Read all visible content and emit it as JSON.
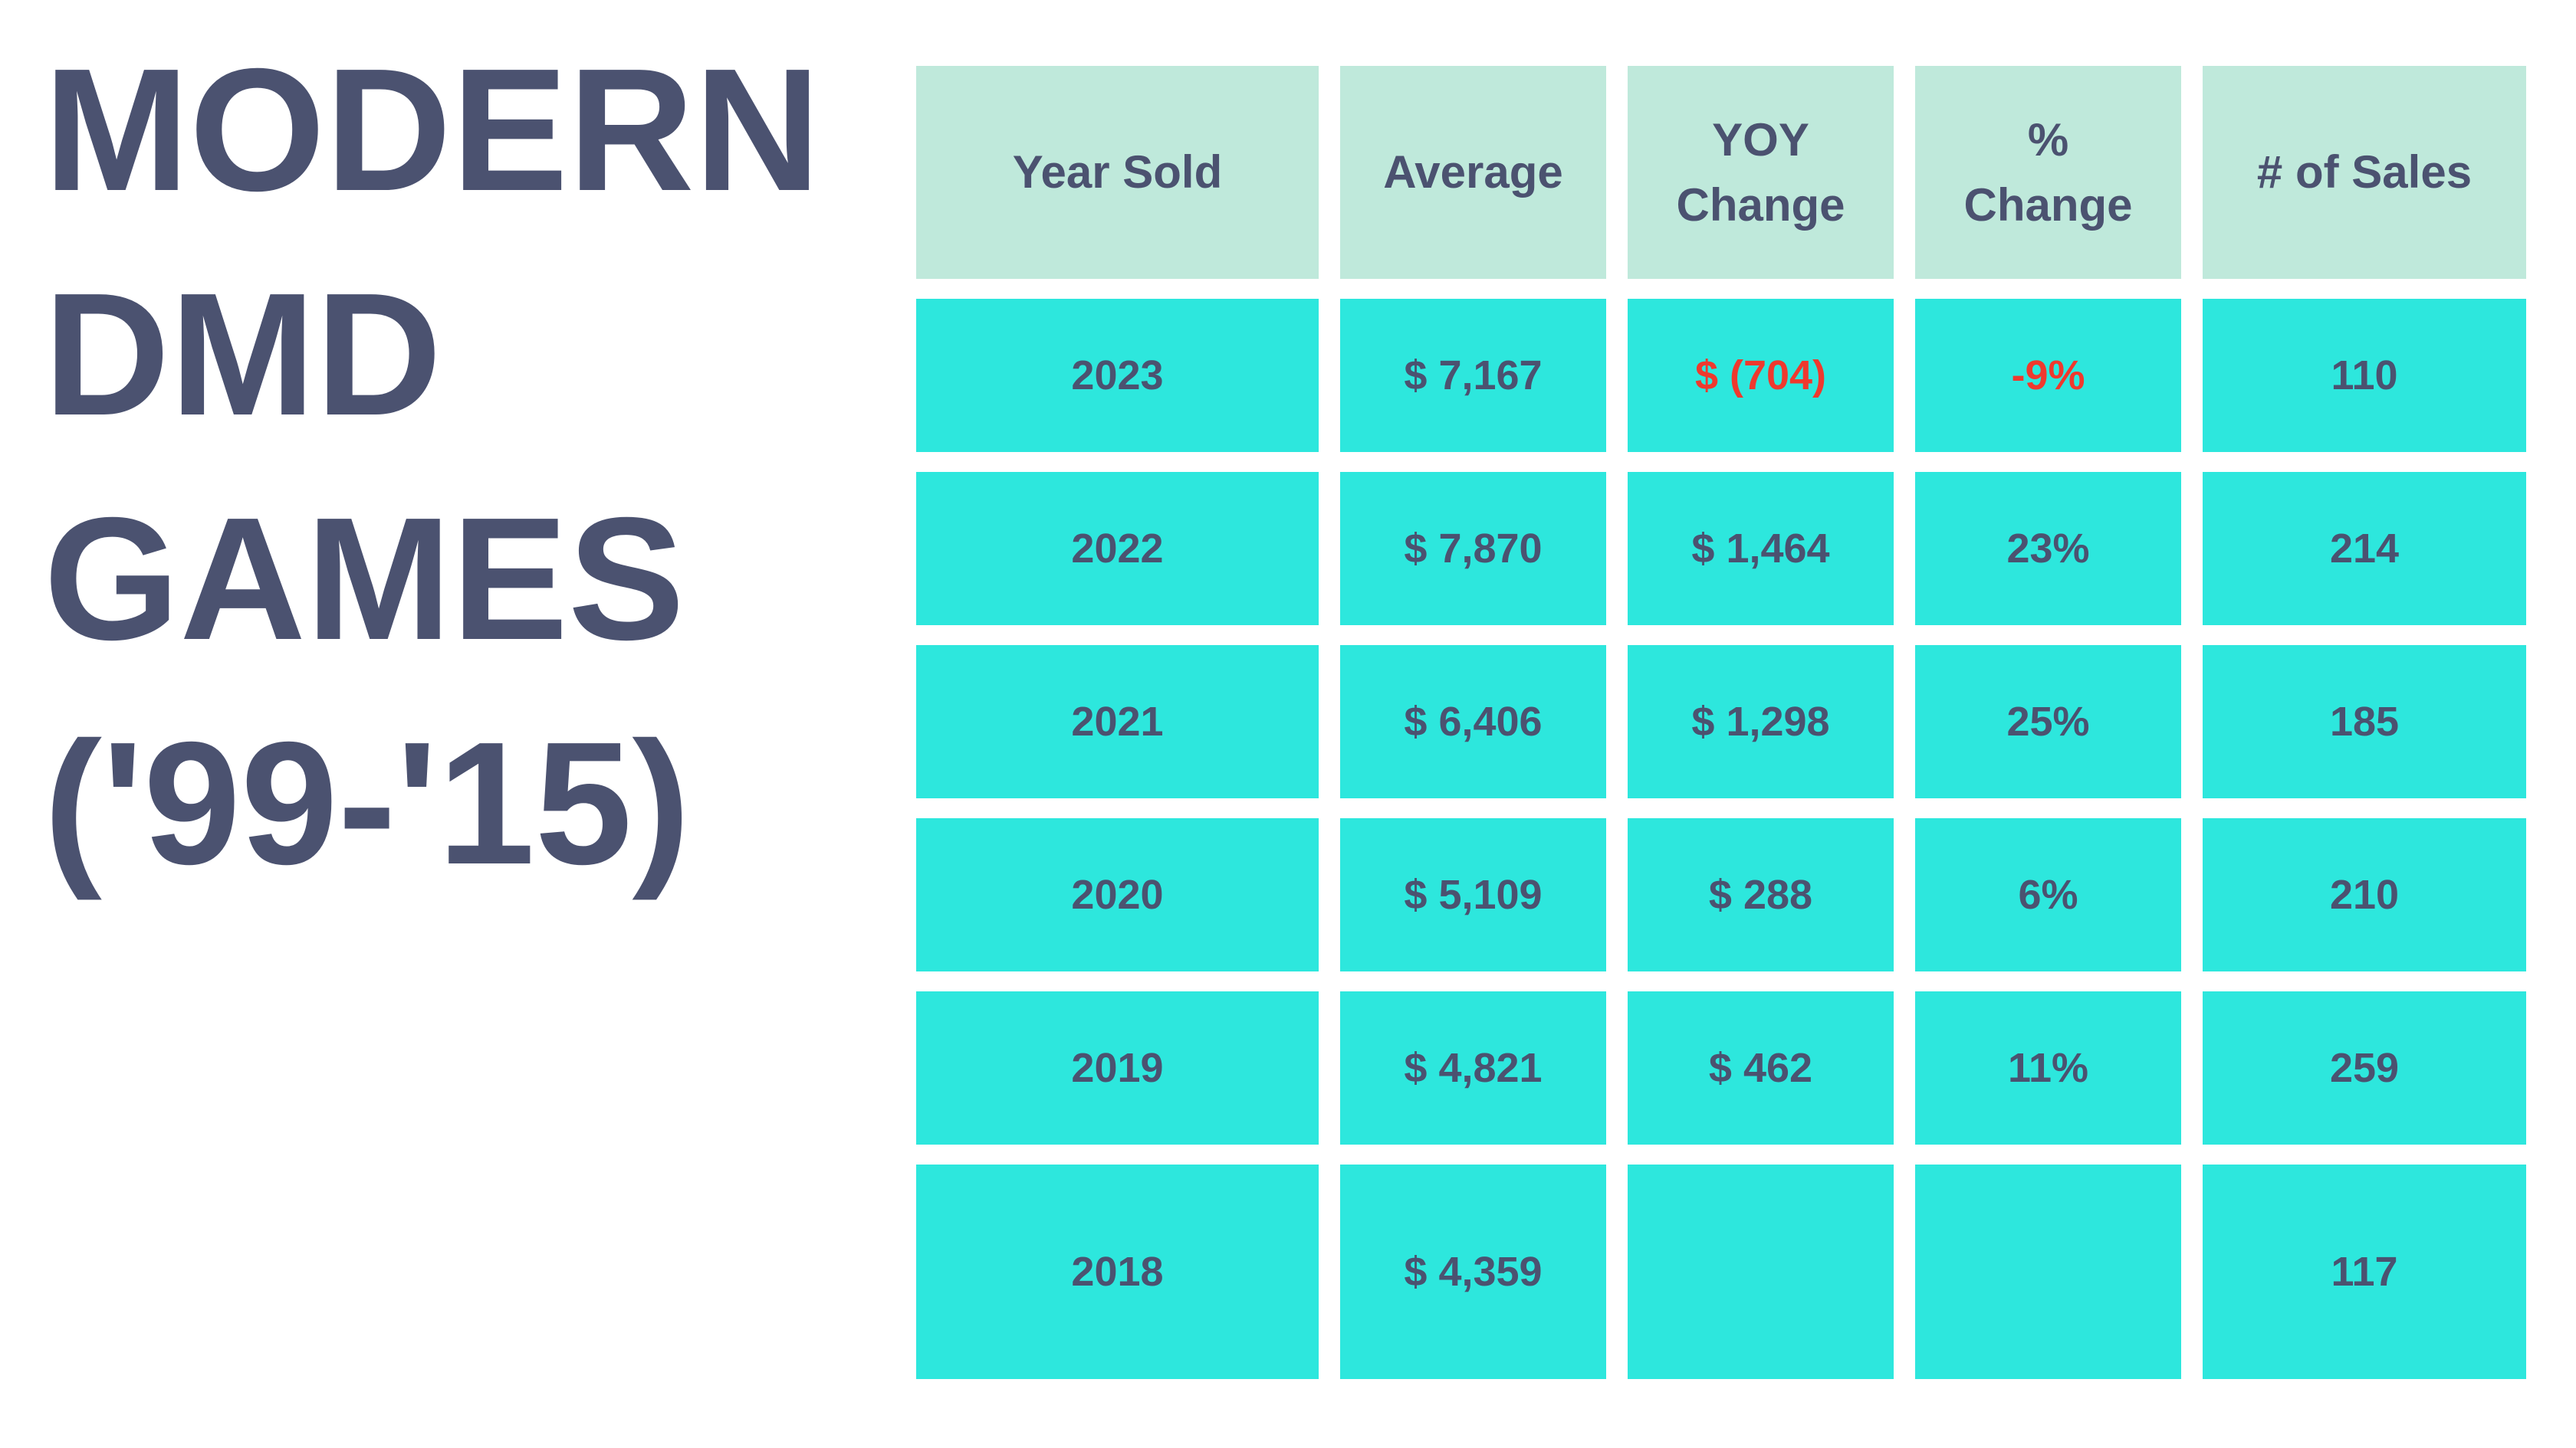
{
  "title": {
    "lines": [
      "MODERN",
      "DMD",
      "GAMES",
      "('99-'15)"
    ]
  },
  "table": {
    "headers": [
      {
        "label": "Year Sold"
      },
      {
        "label": "Average"
      },
      {
        "label": "YOY Change"
      },
      {
        "label": "% Change"
      },
      {
        "label": "# of Sales"
      }
    ],
    "rows": [
      {
        "year": "2023",
        "average": "$ 7,167",
        "yoy": "$ (704)",
        "pct": "-9%",
        "sales": "110",
        "red_fields": [
          "yoy",
          "pct"
        ]
      },
      {
        "year": "2022",
        "average": "$ 7,870",
        "yoy": "$ 1,464",
        "pct": "23%",
        "sales": "214",
        "red_fields": []
      },
      {
        "year": "2021",
        "average": "$ 6,406",
        "yoy": "$ 1,298",
        "pct": "25%",
        "sales": "185",
        "red_fields": []
      },
      {
        "year": "2020",
        "average": "$ 5,109",
        "yoy": "$ 288",
        "pct": "6%",
        "sales": "210",
        "red_fields": []
      },
      {
        "year": "2019",
        "average": "$ 4,821",
        "yoy": "$ 462",
        "pct": "11%",
        "sales": "259",
        "red_fields": []
      },
      {
        "year": "2018",
        "average": "$ 4,359",
        "yoy": "",
        "pct": "",
        "sales": "117",
        "red_fields": []
      }
    ]
  },
  "colors": {
    "background": "#FFFFFF",
    "header_bg": "#BFE9DB",
    "row_bg": "#2DE7DD",
    "text_dark": "#4B5270",
    "text_negative": "#EF392E"
  },
  "chart_data": {
    "type": "table",
    "title": "MODERN DMD GAMES ('99-'15)",
    "columns": [
      "Year Sold",
      "Average",
      "YOY Change",
      "% Change",
      "# of Sales"
    ],
    "rows": [
      {
        "year_sold": 2023,
        "average_usd": 7167,
        "yoy_change_usd": -704,
        "pct_change": -9,
        "num_sales": 110
      },
      {
        "year_sold": 2022,
        "average_usd": 7870,
        "yoy_change_usd": 1464,
        "pct_change": 23,
        "num_sales": 214
      },
      {
        "year_sold": 2021,
        "average_usd": 6406,
        "yoy_change_usd": 1298,
        "pct_change": 25,
        "num_sales": 185
      },
      {
        "year_sold": 2020,
        "average_usd": 5109,
        "yoy_change_usd": 288,
        "pct_change": 6,
        "num_sales": 210
      },
      {
        "year_sold": 2019,
        "average_usd": 4821,
        "yoy_change_usd": 462,
        "pct_change": 11,
        "num_sales": 259
      },
      {
        "year_sold": 2018,
        "average_usd": 4359,
        "yoy_change_usd": null,
        "pct_change": null,
        "num_sales": 117
      }
    ],
    "notes": "Negative values (2023 YOY Change, 2023 % Change) rendered in red; 2018 YOY/% cells are blank."
  }
}
